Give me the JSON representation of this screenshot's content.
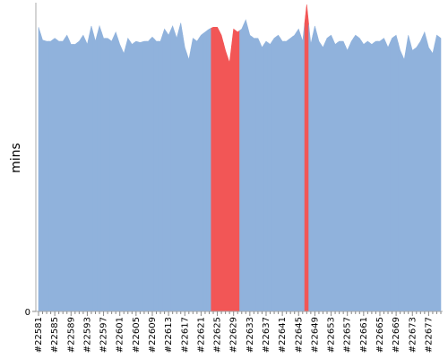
{
  "chart_data": {
    "type": "area",
    "y_label": "mins",
    "categories": [
      "#22581",
      null,
      null,
      null,
      "#22585",
      null,
      null,
      null,
      "#22589",
      null,
      null,
      null,
      "#22593",
      null,
      null,
      null,
      "#22597",
      null,
      null,
      null,
      "#22601",
      null,
      null,
      null,
      "#22605",
      null,
      null,
      null,
      "#22609",
      null,
      null,
      null,
      "#22613",
      null,
      null,
      null,
      "#22617",
      null,
      null,
      null,
      "#22621",
      null,
      null,
      null,
      "#22625",
      null,
      null,
      null,
      "#22629",
      null,
      null,
      null,
      "#22633",
      null,
      null,
      null,
      "#22637",
      null,
      null,
      null,
      "#22641",
      null,
      null,
      null,
      "#22645",
      null,
      null,
      null,
      "#22649",
      null,
      null,
      null,
      "#22653",
      null,
      null,
      null,
      "#22657",
      null,
      null,
      null,
      "#22661",
      null,
      null,
      null,
      "#22665",
      null,
      null,
      null,
      "#22669",
      null,
      null,
      null,
      "#22673",
      null,
      null,
      null,
      "#22677",
      null,
      null,
      null
    ],
    "series": [
      {
        "color": "#90b2dc",
        "values": [
          46.3,
          44.2,
          44,
          44,
          44.5,
          44,
          44,
          45,
          43.5,
          43.5,
          44,
          45,
          43.5,
          46.5,
          44,
          46.5,
          44.5,
          44.5,
          44,
          45.5,
          43.5,
          42,
          44.5,
          43.5,
          44,
          43.8,
          44,
          44,
          44.7,
          44,
          44,
          46,
          45,
          46.5,
          44.5,
          47,
          43,
          41,
          44.5,
          44,
          45,
          45.5,
          46,
          46.3,
          46.3,
          45,
          42.5,
          40.5,
          46,
          45.5,
          46,
          47.5,
          45,
          44.5,
          44.5,
          43,
          44,
          43.5,
          44.5,
          45,
          44,
          44,
          44.5,
          45,
          46,
          44,
          50,
          43.5,
          46.5,
          44,
          43,
          44.5,
          45,
          43.5,
          44,
          44,
          42.5,
          44,
          45,
          44.5,
          43.5,
          44,
          43.5,
          44,
          44,
          44.5,
          43,
          44.5,
          45,
          42.5,
          41,
          45,
          42.5,
          43,
          44,
          45.5,
          43,
          42,
          45,
          44.5
        ],
        "point_colors": [
          "#90b2dc",
          "#90b2dc",
          "#90b2dc",
          "#90b2dc",
          "#90b2dc",
          "#90b2dc",
          "#90b2dc",
          "#90b2dc",
          "#90b2dc",
          "#90b2dc",
          "#90b2dc",
          "#90b2dc",
          "#90b2dc",
          "#90b2dc",
          "#90b2dc",
          "#90b2dc",
          "#90b2dc",
          "#90b2dc",
          "#90b2dc",
          "#90b2dc",
          "#90b2dc",
          "#90b2dc",
          "#90b2dc",
          "#90b2dc",
          "#90b2dc",
          "#90b2dc",
          "#90b2dc",
          "#90b2dc",
          "#90b2dc",
          "#90b2dc",
          "#90b2dc",
          "#90b2dc",
          "#90b2dc",
          "#90b2dc",
          "#90b2dc",
          "#90b2dc",
          "#90b2dc",
          "#90b2dc",
          "#90b2dc",
          "#90b2dc",
          "#90b2dc",
          "#90b2dc",
          "#90b2dc",
          "#f25656",
          "#f25656",
          "#f25656",
          "#f25656",
          "#f25656",
          "#f25656",
          "#f25656",
          "#90b2dc",
          "#90b2dc",
          "#90b2dc",
          "#90b2dc",
          "#90b2dc",
          "#90b2dc",
          "#90b2dc",
          "#90b2dc",
          "#90b2dc",
          "#90b2dc",
          "#90b2dc",
          "#90b2dc",
          "#90b2dc",
          "#90b2dc",
          "#90b2dc",
          "#90b2dc",
          "#f25656",
          "#90b2dc",
          "#90b2dc",
          "#90b2dc",
          "#90b2dc",
          "#90b2dc",
          "#90b2dc",
          "#90b2dc",
          "#90b2dc",
          "#90b2dc",
          "#90b2dc",
          "#90b2dc",
          "#90b2dc",
          "#90b2dc",
          "#90b2dc",
          "#90b2dc",
          "#90b2dc",
          "#90b2dc",
          "#90b2dc",
          "#90b2dc",
          "#90b2dc",
          "#90b2dc",
          "#90b2dc",
          "#90b2dc",
          "#90b2dc",
          "#90b2dc",
          "#90b2dc",
          "#90b2dc",
          "#90b2dc",
          "#90b2dc",
          "#90b2dc",
          "#90b2dc",
          "#90b2dc",
          "#90b2dc"
        ]
      }
    ],
    "ylim": [
      0,
      50
    ],
    "yticks": [
      0
    ],
    "grid": false
  }
}
